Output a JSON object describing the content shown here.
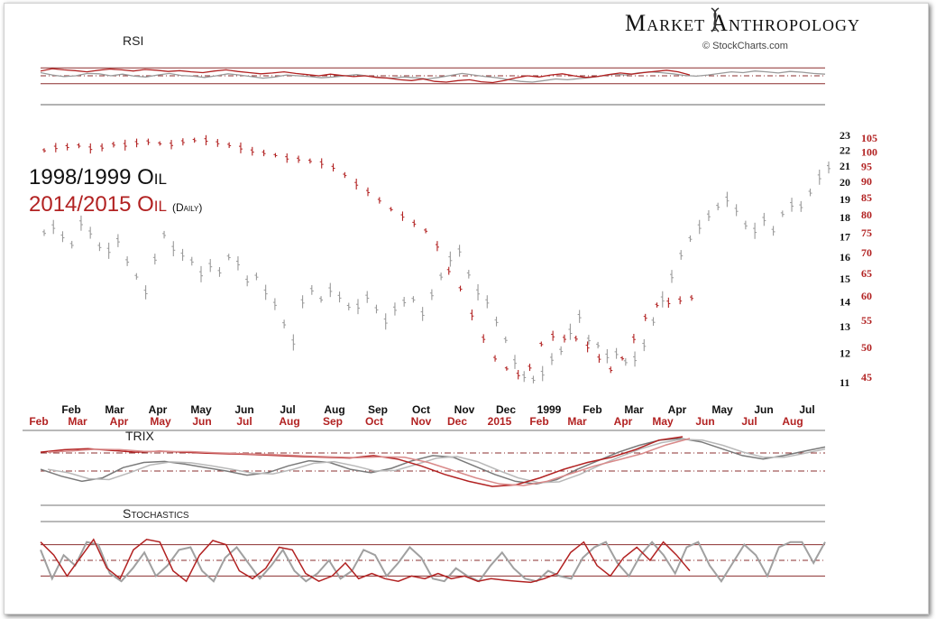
{
  "header": {
    "brand": "Market Anthropology",
    "credit": "© StockCharts.com"
  },
  "colors": {
    "series_1998": "#9a9a9a",
    "series_2014": "#b22222",
    "band": "#8b2f2f"
  },
  "legend": {
    "line1": "1998/1999 Oil",
    "line2": "2014/2015 Oil",
    "line2_suffix": "(Daily)"
  },
  "chart_data": [
    {
      "type": "line",
      "title": "RSI",
      "ylim": [
        0,
        100
      ],
      "reference_lines": [
        70,
        50,
        30
      ],
      "series": [
        {
          "name": "",
          "values": [
            58,
            52,
            48,
            50,
            56,
            55,
            50,
            54,
            49,
            47,
            52,
            56,
            51,
            49,
            46,
            50,
            55,
            52,
            48,
            44,
            47,
            52,
            50,
            48,
            45,
            47,
            50,
            53,
            49,
            46,
            44,
            47,
            45,
            42,
            46,
            51,
            56,
            52,
            48,
            45,
            40,
            36,
            34,
            38,
            42,
            40,
            43,
            46,
            50,
            54,
            52,
            57,
            60,
            58,
            55,
            51,
            49,
            52,
            56,
            60,
            58,
            62,
            60,
            57,
            61,
            59,
            56,
            54
          ]
        },
        {
          "name": "",
          "values": [
            62,
            68,
            65,
            63,
            60,
            64,
            67,
            65,
            62,
            66,
            64,
            61,
            63,
            60,
            58,
            62,
            65,
            61,
            58,
            55,
            57,
            60,
            56,
            53,
            50,
            54,
            51,
            48,
            50,
            46,
            44,
            40,
            38,
            42,
            36,
            34,
            38,
            40,
            35,
            33,
            38,
            45,
            50,
            47,
            52,
            55,
            50,
            46,
            48,
            53,
            57,
            54,
            58,
            61,
            64,
            60,
            52
          ]
        }
      ]
    },
    {
      "type": "line",
      "y_left_ticks": [
        23,
        22,
        21,
        20,
        19,
        18,
        17,
        16,
        15,
        14,
        13,
        12,
        11
      ],
      "y_right_ticks": [
        105,
        100,
        95,
        90,
        85,
        80,
        75,
        70,
        65,
        60,
        55,
        50,
        45
      ],
      "x_ticks_1998": [
        "Feb",
        "Mar",
        "Apr",
        "May",
        "Jun",
        "Jul",
        "Aug",
        "Sep",
        "Oct",
        "Nov",
        "Dec",
        "1999",
        "Feb",
        "Mar",
        "Apr",
        "May",
        "Jun",
        "Jul"
      ],
      "x_ticks_2014": [
        "Feb",
        "Mar",
        "Apr",
        "May",
        "Jun",
        "Jul",
        "Aug",
        "Sep",
        "Oct",
        "Nov",
        "Dec",
        "2015",
        "Feb",
        "Mar",
        "Apr",
        "May",
        "Jun",
        "Jul",
        "Aug"
      ],
      "series": [
        {
          "name": "1998/1999 Oil",
          "values": [
            17.2,
            17.5,
            17.0,
            16.6,
            17.7,
            17.2,
            16.5,
            16.3,
            16.8,
            15.8,
            15.1,
            14.4,
            15.9,
            17.1,
            16.4,
            16.1,
            15.8,
            15.2,
            15.6,
            15.3,
            16.0,
            15.7,
            14.9,
            15.1,
            14.4,
            13.9,
            13.1,
            12.4,
            14.0,
            14.5,
            14.1,
            14.5,
            14.2,
            13.8,
            13.8,
            14.2,
            13.7,
            13.2,
            13.7,
            14.0,
            14.1,
            13.5,
            14.3,
            15.1,
            15.9,
            16.3,
            15.2,
            14.4,
            14.0,
            13.2,
            12.5,
            11.7,
            11.2,
            11.1,
            11.3,
            11.8,
            12.1,
            12.8,
            13.4,
            12.5,
            12.3,
            11.9,
            12.0,
            11.7,
            11.8,
            12.3,
            13.2,
            14.1,
            15.1,
            16.1,
            16.9,
            17.5,
            18.1,
            18.6,
            19.0,
            18.4,
            17.6,
            17.3,
            17.9,
            17.3,
            18.2,
            18.7,
            18.6,
            19.4,
            20.3,
            20.9
          ]
        },
        {
          "name": "2014/2015 Oil",
          "values": [
            100.5,
            101.5,
            101.8,
            102.2,
            101.2,
            101.6,
            102.6,
            102.4,
            103.2,
            103.6,
            103.0,
            102.6,
            103.6,
            104.2,
            104.2,
            103.2,
            102.4,
            101.4,
            100.2,
            99.6,
            98.8,
            97.8,
            97.4,
            96.8,
            96.0,
            94.6,
            92.1,
            89.2,
            86.8,
            84.2,
            81.6,
            79.6,
            77.6,
            75.6,
            71.6,
            65.6,
            61.6,
            56.1,
            51.6,
            48.1,
            46.4,
            45.4,
            46.6,
            50.6,
            52.1,
            51.6,
            51.6,
            50.1,
            48.1,
            46.2,
            48.1,
            51.6,
            55.6,
            58.1,
            58.6,
            59.1,
            59.6
          ]
        }
      ]
    },
    {
      "type": "line",
      "title": "TRIX",
      "series": [
        {
          "name": "",
          "values": [
            0.05,
            -0.15,
            -0.3,
            -0.2,
            0.1,
            0.25,
            0.28,
            0.2,
            0.1,
            0.0,
            -0.12,
            -0.05,
            0.15,
            0.3,
            0.25,
            0.05,
            -0.05,
            0.08,
            0.3,
            0.45,
            0.4,
            0.15,
            -0.1,
            -0.3,
            -0.38,
            -0.25,
            0.05,
            0.3,
            0.55,
            0.75,
            0.9,
            0.95,
            0.85,
            0.65,
            0.45,
            0.35,
            0.45,
            0.58,
            0.7
          ]
        },
        {
          "name": "",
          "values": [
            0.55,
            0.62,
            0.65,
            0.6,
            0.55,
            0.58,
            0.55,
            0.52,
            0.5,
            0.48,
            0.45,
            0.42,
            0.4,
            0.38,
            0.45,
            0.35,
            0.15,
            -0.1,
            -0.3,
            -0.45,
            -0.4,
            -0.2,
            0.05,
            0.25,
            0.4,
            0.62,
            0.9,
            1.0
          ]
        }
      ]
    },
    {
      "type": "line",
      "title": "Stochastics",
      "ylim": [
        0,
        100
      ],
      "reference_lines": [
        80,
        50,
        20
      ],
      "series": [
        {
          "name": "",
          "values": [
            70,
            15,
            60,
            40,
            85,
            80,
            25,
            10,
            35,
            65,
            20,
            40,
            70,
            75,
            30,
            10,
            55,
            75,
            45,
            15,
            40,
            70,
            30,
            10,
            25,
            50,
            15,
            30,
            70,
            60,
            20,
            45,
            75,
            55,
            15,
            10,
            35,
            20,
            10,
            40,
            65,
            35,
            15,
            10,
            30,
            20,
            15,
            55,
            75,
            85,
            45,
            20,
            60,
            85,
            60,
            25,
            75,
            85,
            40,
            10,
            45,
            80,
            60,
            20,
            75,
            85,
            85,
            45,
            85
          ]
        },
        {
          "name": "",
          "values": [
            85,
            60,
            20,
            55,
            90,
            35,
            15,
            70,
            90,
            85,
            30,
            10,
            60,
            88,
            80,
            30,
            15,
            35,
            75,
            70,
            25,
            10,
            20,
            45,
            15,
            25,
            15,
            10,
            20,
            15,
            25,
            15,
            20,
            10,
            15,
            12,
            10,
            8,
            15,
            25,
            65,
            85,
            40,
            20,
            55,
            75,
            50,
            85,
            60,
            30
          ]
        }
      ]
    }
  ]
}
